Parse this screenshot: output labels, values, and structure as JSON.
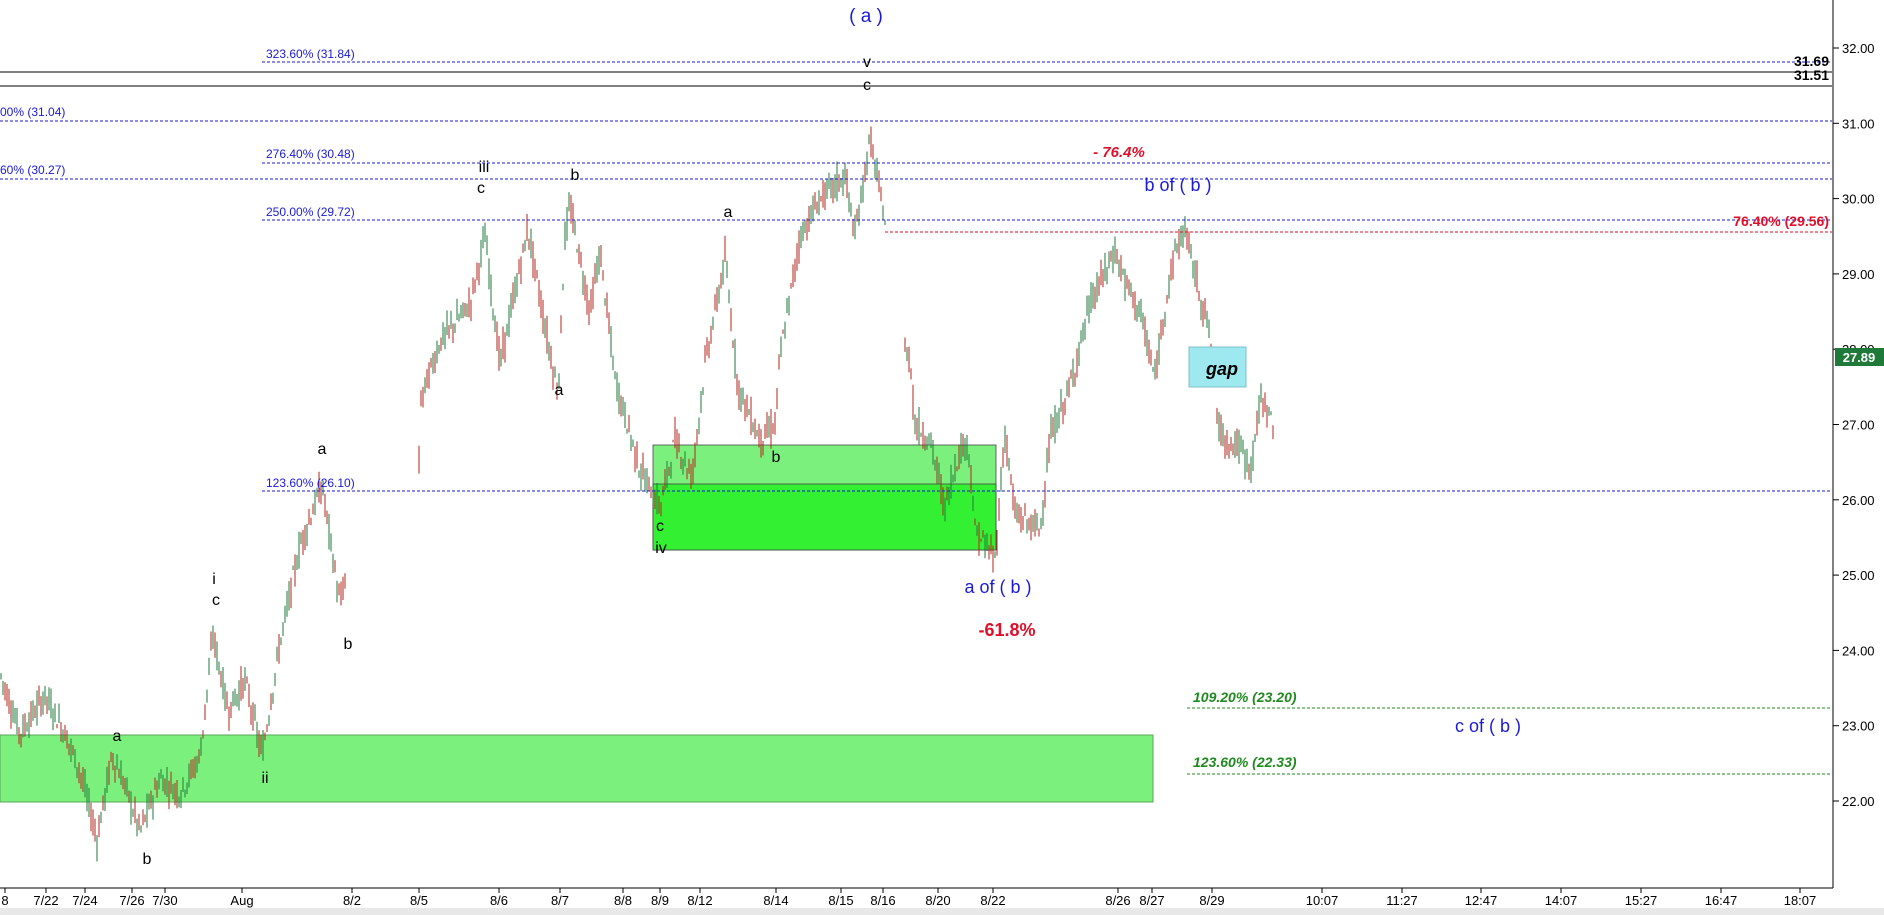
{
  "chart_data": {
    "type": "candlestick",
    "symbol_price": "27.89",
    "y_axis": {
      "min": 21.0,
      "max": 32.5,
      "ticks": [
        "22.00",
        "23.00",
        "24.00",
        "25.00",
        "26.00",
        "27.00",
        "28.00",
        "29.00",
        "30.00",
        "31.00",
        "32.00"
      ],
      "tick_values": [
        22,
        23,
        24,
        25,
        26,
        27,
        28,
        29,
        30,
        31,
        32
      ]
    },
    "x_axis": {
      "labels": [
        "8",
        "7/22",
        "7/24",
        "7/26",
        "7/30",
        "Aug",
        "8/2",
        "8/5",
        "8/6",
        "8/7",
        "8/8",
        "8/9",
        "8/12",
        "8/14",
        "8/15",
        "8/16",
        "8/20",
        "8/22",
        "8/26",
        "8/27",
        "8/29",
        "10:07",
        "11:27",
        "12:47",
        "14:07",
        "15:27",
        "16:47",
        "18:07"
      ]
    },
    "horizontal_lines": [
      {
        "value": 31.69,
        "label": "31.69",
        "color": "#000000"
      },
      {
        "value": 31.51,
        "label": "31.51",
        "color": "#000000"
      }
    ],
    "fib_levels": [
      {
        "value": 31.84,
        "label": "323.60% (31.84)",
        "color": "#1a1adb"
      },
      {
        "value": 31.04,
        "label": "00% (31.04)",
        "color": "#1a1adb"
      },
      {
        "value": 30.48,
        "label": "276.40% (30.48)",
        "color": "#1a1adb"
      },
      {
        "value": 30.27,
        "label": "60% (30.27)",
        "color": "#1a1adb"
      },
      {
        "value": 29.72,
        "label": "250.00% (29.72)",
        "color": "#1a1adb"
      },
      {
        "value": 26.1,
        "label": "123.60% (26.10)",
        "color": "#1a1adb"
      }
    ],
    "retrace_levels": [
      {
        "value": 29.56,
        "label": "76.40% (29.56)",
        "color": "#e0102a"
      },
      {
        "value": 23.2,
        "label": "109.20% (23.20)",
        "color": "#1f8a1f"
      },
      {
        "value": 22.33,
        "label": "123.60% (22.33)",
        "color": "#1f8a1f"
      }
    ],
    "wave_labels": [
      {
        "text": "( a )",
        "color": "#1a1adb",
        "size": "large"
      },
      {
        "text": "v",
        "color": "#000000"
      },
      {
        "text": "c",
        "color": "#000000"
      },
      {
        "text": "iii",
        "color": "#000000"
      },
      {
        "text": "c",
        "color": "#000000"
      },
      {
        "text": "b",
        "color": "#000000"
      },
      {
        "text": "a",
        "color": "#000000"
      },
      {
        "text": "a",
        "color": "#000000"
      },
      {
        "text": "b",
        "color": "#000000"
      },
      {
        "text": "a",
        "color": "#000000"
      },
      {
        "text": "b",
        "color": "#000000"
      },
      {
        "text": "i",
        "color": "#000000"
      },
      {
        "text": "c",
        "color": "#000000"
      },
      {
        "text": "a",
        "color": "#000000"
      },
      {
        "text": "ii",
        "color": "#000000"
      },
      {
        "text": "b",
        "color": "#000000"
      },
      {
        "text": "c",
        "color": "#000000"
      },
      {
        "text": "iv",
        "color": "#000000"
      },
      {
        "text": "b of ( b )",
        "color": "#1a1adb",
        "size": "large"
      },
      {
        "text": "a of ( b )",
        "color": "#1a1adb",
        "size": "large"
      },
      {
        "text": "c of ( b )",
        "color": "#1a1adb",
        "size": "large"
      },
      {
        "text": "- 76.4%",
        "color": "#e0102a"
      },
      {
        "text": "-61.8%",
        "color": "#e0102a",
        "size": "large"
      },
      {
        "text": "gap",
        "color": "#000000"
      }
    ],
    "zones": [
      {
        "name": "upper-support-zone",
        "from": 25.3,
        "to": 26.75
      },
      {
        "name": "lower-support-zone",
        "from": 21.95,
        "to": 22.85
      }
    ],
    "colors": {
      "up": "#1f7a3a",
      "down": "#b3261e",
      "zone_light": "#7cf07c",
      "zone_bright": "#33f033",
      "gap_box": "#9ee8f0",
      "price_tag": "#1f7a3a"
    }
  }
}
